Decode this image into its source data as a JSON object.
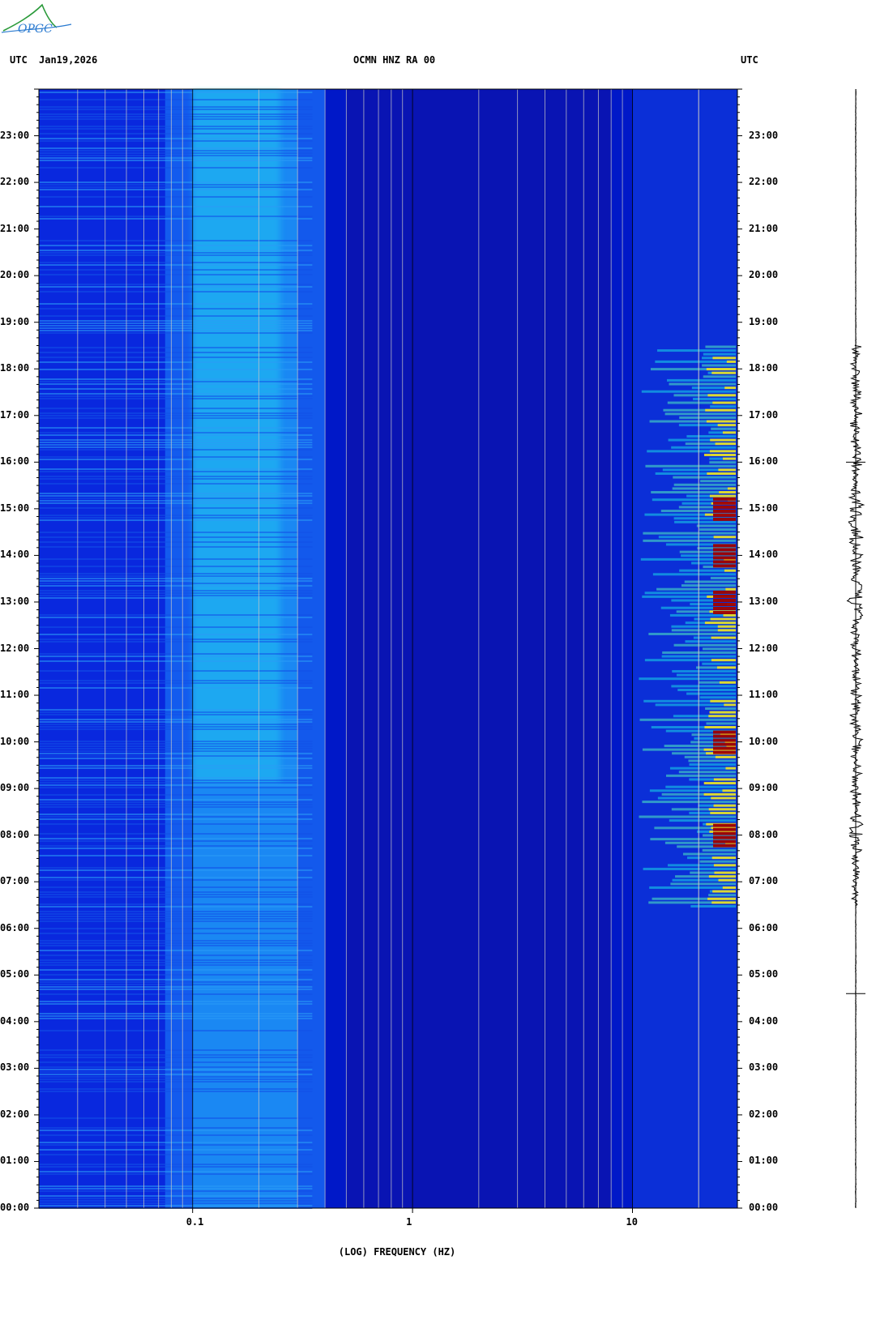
{
  "header": {
    "left_timezone": "UTC",
    "date": "Jan19,2026",
    "station": "OCMN HNZ RA 00",
    "right_timezone": "UTC"
  },
  "logo": {
    "text": "OPGC"
  },
  "colors": {
    "background_blue": "#0018c8",
    "deep_blue": "#0a14a8",
    "cyan": "#1ef0f0",
    "yellow": "#f0e020",
    "red": "#a00000",
    "frame": "#000000"
  },
  "chart_data": {
    "type": "heatmap",
    "title": "OCMN HNZ RA 00",
    "xlabel": "(LOG) FREQUENCY (HZ)",
    "ylabel": "",
    "x_scale": "log",
    "x_tick_labels": [
      "0.1",
      "1",
      "10"
    ],
    "x_ticks": [
      0.1,
      1,
      10
    ],
    "xlim": [
      0.02,
      30
    ],
    "y_tick_labels": [
      "00:00",
      "01:00",
      "02:00",
      "03:00",
      "04:00",
      "05:00",
      "06:00",
      "07:00",
      "08:00",
      "09:00",
      "10:00",
      "11:00",
      "12:00",
      "13:00",
      "14:00",
      "15:00",
      "16:00",
      "17:00",
      "18:00",
      "19:00",
      "20:00",
      "21:00",
      "22:00",
      "23:00"
    ],
    "ylim": [
      0,
      24
    ],
    "activity": {
      "microseism_band_hz": [
        0.1,
        0.3
      ],
      "high_freq_band_hz": [
        10,
        30
      ],
      "high_activity_hours": [
        6.5,
        18.5
      ],
      "peak_hours": [
        8,
        10,
        13,
        14,
        15
      ]
    }
  }
}
